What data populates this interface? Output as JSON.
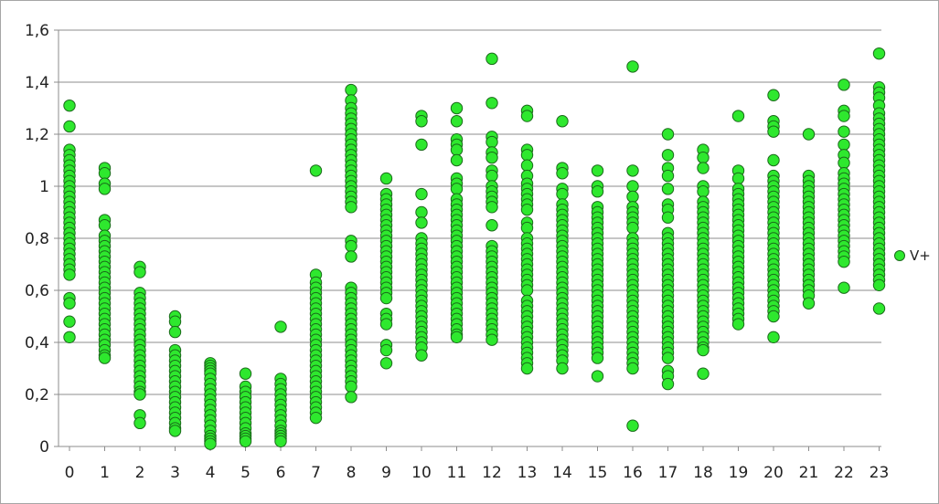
{
  "chart_data": {
    "type": "scatter",
    "title": "",
    "xlabel": "",
    "ylabel": "",
    "xlim": [
      0,
      23
    ],
    "ylim": [
      0,
      1.6
    ],
    "y_ticks": [
      "0",
      "0,2",
      "0,4",
      "0,6",
      "0,8",
      "1",
      "1,2",
      "1,4",
      "1,6"
    ],
    "x_ticks": [
      "0",
      "1",
      "2",
      "3",
      "4",
      "5",
      "6",
      "7",
      "8",
      "9",
      "10",
      "11",
      "12",
      "13",
      "14",
      "15",
      "16",
      "17",
      "18",
      "19",
      "20",
      "21",
      "22",
      "23"
    ],
    "grid": "horizontal",
    "legend_position": "right",
    "marker_color": "#2ee82e",
    "marker_edge_color": "#1a6a1a",
    "series": [
      {
        "name": "V+",
        "points": [
          {
            "x": 0,
            "values": [
              1.31,
              1.23,
              1.14,
              1.12,
              1.1,
              1.08,
              1.06,
              1.04,
              1.02,
              1.0,
              0.98,
              0.96,
              0.94,
              0.92,
              0.9,
              0.88,
              0.86,
              0.84,
              0.82,
              0.8,
              0.78,
              0.76,
              0.74,
              0.72,
              0.7,
              0.68,
              0.66,
              0.57,
              0.55,
              0.48,
              0.42
            ]
          },
          {
            "x": 1,
            "values": [
              1.07,
              1.05,
              1.01,
              0.99,
              0.87,
              0.85,
              0.81,
              0.79,
              0.77,
              0.75,
              0.73,
              0.71,
              0.69,
              0.67,
              0.65,
              0.63,
              0.61,
              0.59,
              0.57,
              0.55,
              0.53,
              0.51,
              0.49,
              0.47,
              0.45,
              0.43,
              0.41,
              0.39,
              0.37,
              0.35,
              0.34
            ]
          },
          {
            "x": 2,
            "values": [
              0.69,
              0.67,
              0.59,
              0.57,
              0.55,
              0.53,
              0.51,
              0.49,
              0.47,
              0.45,
              0.43,
              0.41,
              0.39,
              0.37,
              0.35,
              0.33,
              0.31,
              0.29,
              0.27,
              0.25,
              0.23,
              0.21,
              0.2,
              0.12,
              0.09
            ]
          },
          {
            "x": 3,
            "values": [
              0.5,
              0.48,
              0.44,
              0.37,
              0.35,
              0.33,
              0.31,
              0.29,
              0.27,
              0.25,
              0.23,
              0.21,
              0.19,
              0.17,
              0.15,
              0.13,
              0.11,
              0.09,
              0.07,
              0.06
            ]
          },
          {
            "x": 4,
            "values": [
              0.32,
              0.31,
              0.3,
              0.29,
              0.28,
              0.26,
              0.24,
              0.22,
              0.2,
              0.18,
              0.16,
              0.14,
              0.12,
              0.1,
              0.08,
              0.06,
              0.04,
              0.03,
              0.02,
              0.01
            ]
          },
          {
            "x": 5,
            "values": [
              0.28,
              0.23,
              0.21,
              0.19,
              0.17,
              0.15,
              0.13,
              0.11,
              0.09,
              0.07,
              0.05,
              0.04,
              0.03,
              0.02
            ]
          },
          {
            "x": 6,
            "values": [
              0.46,
              0.26,
              0.24,
              0.22,
              0.2,
              0.18,
              0.16,
              0.14,
              0.12,
              0.1,
              0.08,
              0.06,
              0.05,
              0.04,
              0.03,
              0.02
            ]
          },
          {
            "x": 7,
            "values": [
              1.06,
              0.66,
              0.63,
              0.61,
              0.59,
              0.57,
              0.55,
              0.53,
              0.51,
              0.49,
              0.47,
              0.45,
              0.43,
              0.41,
              0.39,
              0.37,
              0.35,
              0.33,
              0.31,
              0.29,
              0.27,
              0.25,
              0.23,
              0.21,
              0.19,
              0.17,
              0.15,
              0.13,
              0.11
            ]
          },
          {
            "x": 8,
            "values": [
              1.37,
              1.33,
              1.3,
              1.28,
              1.26,
              1.24,
              1.22,
              1.2,
              1.18,
              1.16,
              1.14,
              1.12,
              1.1,
              1.08,
              1.06,
              1.04,
              1.02,
              1.0,
              0.98,
              0.96,
              0.94,
              0.92,
              0.79,
              0.77,
              0.73,
              0.61,
              0.59,
              0.57,
              0.55,
              0.53,
              0.51,
              0.49,
              0.47,
              0.45,
              0.43,
              0.41,
              0.39,
              0.37,
              0.35,
              0.33,
              0.31,
              0.29,
              0.27,
              0.25,
              0.23,
              0.19
            ]
          },
          {
            "x": 9,
            "values": [
              1.03,
              0.97,
              0.95,
              0.93,
              0.91,
              0.89,
              0.87,
              0.85,
              0.83,
              0.81,
              0.79,
              0.77,
              0.75,
              0.73,
              0.71,
              0.69,
              0.67,
              0.65,
              0.63,
              0.61,
              0.59,
              0.57,
              0.51,
              0.49,
              0.47,
              0.39,
              0.37,
              0.32
            ]
          },
          {
            "x": 10,
            "values": [
              1.27,
              1.25,
              1.16,
              0.97,
              0.9,
              0.86,
              0.8,
              0.78,
              0.76,
              0.74,
              0.72,
              0.7,
              0.68,
              0.66,
              0.64,
              0.62,
              0.6,
              0.58,
              0.56,
              0.54,
              0.52,
              0.5,
              0.48,
              0.46,
              0.44,
              0.42,
              0.4,
              0.38,
              0.35
            ]
          },
          {
            "x": 11,
            "values": [
              1.3,
              1.25,
              1.18,
              1.16,
              1.14,
              1.1,
              1.03,
              1.01,
              0.99,
              0.95,
              0.93,
              0.91,
              0.89,
              0.87,
              0.85,
              0.83,
              0.81,
              0.79,
              0.77,
              0.75,
              0.73,
              0.71,
              0.69,
              0.67,
              0.65,
              0.63,
              0.61,
              0.59,
              0.57,
              0.55,
              0.53,
              0.51,
              0.49,
              0.47,
              0.45,
              0.43,
              0.42
            ]
          },
          {
            "x": 12,
            "values": [
              1.49,
              1.32,
              1.19,
              1.17,
              1.13,
              1.11,
              1.06,
              1.04,
              1.0,
              0.98,
              0.96,
              0.94,
              0.92,
              0.85,
              0.77,
              0.75,
              0.73,
              0.71,
              0.69,
              0.67,
              0.65,
              0.63,
              0.61,
              0.59,
              0.57,
              0.55,
              0.53,
              0.51,
              0.49,
              0.47,
              0.45,
              0.43,
              0.41
            ]
          },
          {
            "x": 13,
            "values": [
              1.29,
              1.27,
              1.14,
              1.12,
              1.08,
              1.04,
              1.01,
              0.99,
              0.97,
              0.95,
              0.93,
              0.91,
              0.86,
              0.84,
              0.8,
              0.78,
              0.76,
              0.74,
              0.72,
              0.7,
              0.68,
              0.66,
              0.64,
              0.62,
              0.6,
              0.56,
              0.54,
              0.52,
              0.5,
              0.48,
              0.46,
              0.44,
              0.42,
              0.4,
              0.38,
              0.36,
              0.34,
              0.32,
              0.3
            ]
          },
          {
            "x": 14,
            "values": [
              1.25,
              1.07,
              1.05,
              0.99,
              0.97,
              0.93,
              0.91,
              0.89,
              0.87,
              0.85,
              0.83,
              0.81,
              0.79,
              0.77,
              0.75,
              0.73,
              0.71,
              0.69,
              0.67,
              0.65,
              0.63,
              0.61,
              0.59,
              0.57,
              0.55,
              0.53,
              0.51,
              0.49,
              0.47,
              0.45,
              0.43,
              0.41,
              0.39,
              0.37,
              0.35,
              0.33,
              0.3
            ]
          },
          {
            "x": 15,
            "values": [
              1.06,
              1.0,
              0.98,
              0.92,
              0.9,
              0.88,
              0.86,
              0.84,
              0.82,
              0.8,
              0.78,
              0.76,
              0.74,
              0.72,
              0.7,
              0.68,
              0.66,
              0.64,
              0.62,
              0.6,
              0.58,
              0.56,
              0.54,
              0.52,
              0.5,
              0.48,
              0.46,
              0.44,
              0.42,
              0.4,
              0.38,
              0.36,
              0.34,
              0.27
            ]
          },
          {
            "x": 16,
            "values": [
              1.46,
              1.06,
              1.0,
              0.96,
              0.92,
              0.9,
              0.88,
              0.86,
              0.84,
              0.8,
              0.78,
              0.76,
              0.74,
              0.72,
              0.7,
              0.68,
              0.66,
              0.64,
              0.62,
              0.6,
              0.58,
              0.56,
              0.54,
              0.52,
              0.5,
              0.48,
              0.46,
              0.44,
              0.42,
              0.4,
              0.38,
              0.36,
              0.34,
              0.32,
              0.3,
              0.08
            ]
          },
          {
            "x": 17,
            "values": [
              1.2,
              1.12,
              1.07,
              1.04,
              0.99,
              0.93,
              0.91,
              0.88,
              0.82,
              0.8,
              0.78,
              0.76,
              0.74,
              0.72,
              0.7,
              0.68,
              0.66,
              0.64,
              0.62,
              0.6,
              0.58,
              0.56,
              0.54,
              0.52,
              0.5,
              0.48,
              0.46,
              0.44,
              0.42,
              0.4,
              0.38,
              0.36,
              0.34,
              0.29,
              0.27,
              0.24
            ]
          },
          {
            "x": 18,
            "values": [
              1.14,
              1.11,
              1.07,
              1.0,
              0.98,
              0.94,
              0.92,
              0.9,
              0.88,
              0.86,
              0.84,
              0.82,
              0.8,
              0.78,
              0.76,
              0.74,
              0.72,
              0.7,
              0.68,
              0.66,
              0.64,
              0.62,
              0.6,
              0.58,
              0.56,
              0.54,
              0.52,
              0.5,
              0.48,
              0.46,
              0.44,
              0.42,
              0.4,
              0.38,
              0.37,
              0.28
            ]
          },
          {
            "x": 19,
            "values": [
              1.27,
              1.06,
              1.03,
              0.99,
              0.97,
              0.95,
              0.93,
              0.91,
              0.89,
              0.87,
              0.85,
              0.83,
              0.81,
              0.79,
              0.77,
              0.75,
              0.73,
              0.71,
              0.69,
              0.67,
              0.65,
              0.63,
              0.61,
              0.59,
              0.57,
              0.55,
              0.53,
              0.51,
              0.49,
              0.47
            ]
          },
          {
            "x": 20,
            "values": [
              1.35,
              1.25,
              1.23,
              1.21,
              1.1,
              1.04,
              1.02,
              1.0,
              0.98,
              0.96,
              0.94,
              0.92,
              0.9,
              0.88,
              0.86,
              0.84,
              0.82,
              0.8,
              0.78,
              0.76,
              0.74,
              0.72,
              0.7,
              0.68,
              0.66,
              0.64,
              0.62,
              0.6,
              0.58,
              0.56,
              0.54,
              0.52,
              0.5,
              0.42
            ]
          },
          {
            "x": 21,
            "values": [
              1.2,
              1.04,
              1.02,
              1.0,
              0.98,
              0.96,
              0.94,
              0.92,
              0.9,
              0.88,
              0.86,
              0.84,
              0.82,
              0.8,
              0.78,
              0.76,
              0.74,
              0.72,
              0.7,
              0.68,
              0.66,
              0.64,
              0.62,
              0.6,
              0.58,
              0.55
            ]
          },
          {
            "x": 22,
            "values": [
              1.39,
              1.29,
              1.27,
              1.21,
              1.16,
              1.12,
              1.09,
              1.05,
              1.03,
              1.01,
              0.99,
              0.97,
              0.95,
              0.93,
              0.91,
              0.89,
              0.87,
              0.85,
              0.83,
              0.81,
              0.79,
              0.77,
              0.75,
              0.73,
              0.71,
              0.61
            ]
          },
          {
            "x": 23,
            "values": [
              1.51,
              1.38,
              1.36,
              1.34,
              1.31,
              1.28,
              1.26,
              1.24,
              1.22,
              1.2,
              1.18,
              1.16,
              1.14,
              1.12,
              1.1,
              1.08,
              1.06,
              1.04,
              1.02,
              1.0,
              0.98,
              0.96,
              0.94,
              0.92,
              0.9,
              0.88,
              0.86,
              0.84,
              0.82,
              0.8,
              0.78,
              0.76,
              0.74,
              0.72,
              0.7,
              0.68,
              0.66,
              0.64,
              0.62,
              0.53
            ]
          }
        ]
      }
    ]
  }
}
